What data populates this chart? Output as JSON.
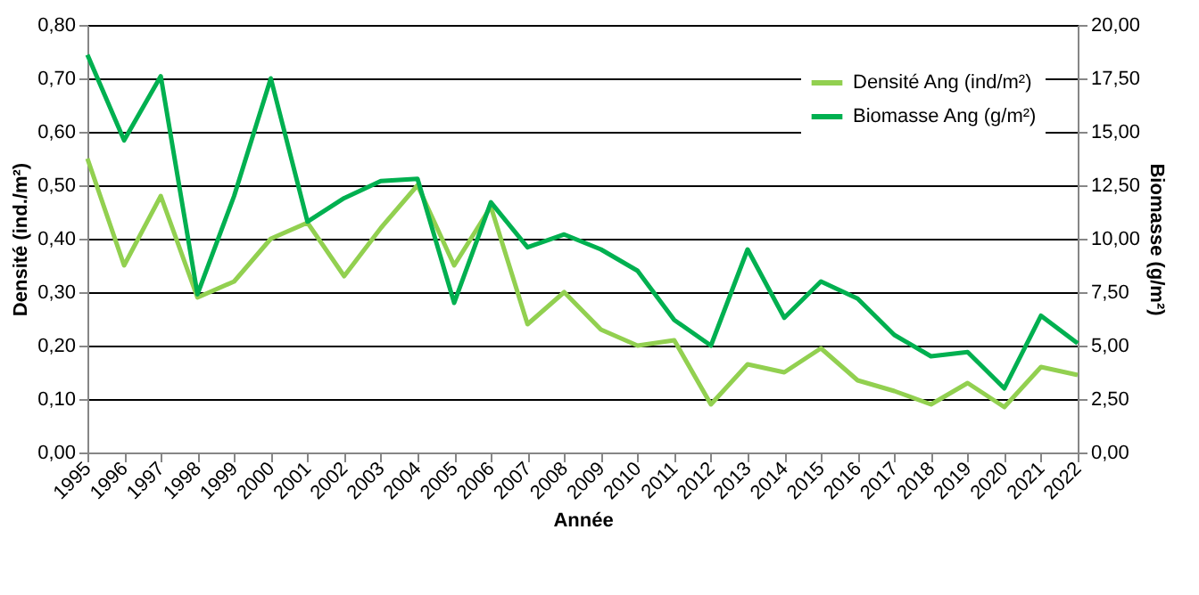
{
  "chart_data": {
    "type": "line",
    "xlabel": "Année",
    "ylabel": "Densité (ind./m²)",
    "y2label": "Biomasse (g/m²)",
    "categories": [
      "1995",
      "1996",
      "1997",
      "1998",
      "1999",
      "2000",
      "2001",
      "2002",
      "2003",
      "2004",
      "2005",
      "2006",
      "2007",
      "2008",
      "2009",
      "2010",
      "2011",
      "2012",
      "2013",
      "2014",
      "2015",
      "2016",
      "2017",
      "2018",
      "2019",
      "2020",
      "2021",
      "2022"
    ],
    "series": [
      {
        "name": "Densité Ang (ind/m²)",
        "color": "#92d050",
        "values": [
          0.55,
          0.35,
          0.48,
          0.29,
          0.32,
          0.4,
          0.43,
          0.33,
          0.42,
          0.5,
          0.35,
          0.46,
          0.24,
          0.3,
          0.23,
          0.2,
          0.21,
          0.09,
          0.165,
          0.15,
          0.195,
          0.135,
          0.115,
          0.09,
          0.13,
          0.085,
          0.16,
          0.145
        ]
      },
      {
        "name": "Biomasse Ang (g/m²)",
        "color": "#00b050",
        "axis": "y2",
        "values": [
          18.6,
          14.6,
          17.6,
          7.4,
          12.0,
          17.5,
          10.8,
          11.9,
          12.7,
          12.8,
          7.0,
          11.7,
          9.6,
          10.2,
          9.5,
          8.5,
          6.2,
          5.0,
          9.5,
          6.3,
          8.0,
          7.2,
          5.5,
          4.5,
          4.7,
          3.0,
          6.4,
          5.1
        ]
      }
    ],
    "ylim": [
      0,
      0.8
    ],
    "yticks": [
      {
        "value": 0,
        "label": "0,00"
      },
      {
        "value": 0.1,
        "label": "0,10"
      },
      {
        "value": 0.2,
        "label": "0,20"
      },
      {
        "value": 0.3,
        "label": "0,30"
      },
      {
        "value": 0.4,
        "label": "0,40"
      },
      {
        "value": 0.5,
        "label": "0,50"
      },
      {
        "value": 0.6,
        "label": "0,60"
      },
      {
        "value": 0.7,
        "label": "0,70"
      },
      {
        "value": 0.8,
        "label": "0,80"
      }
    ],
    "y2lim": [
      0,
      20
    ],
    "y2ticks": [
      {
        "value": 0,
        "label": "0,00"
      },
      {
        "value": 2.5,
        "label": "2,50"
      },
      {
        "value": 5,
        "label": "5,00"
      },
      {
        "value": 7.5,
        "label": "7,50"
      },
      {
        "value": 10,
        "label": "10,00"
      },
      {
        "value": 12.5,
        "label": "12,50"
      },
      {
        "value": 15,
        "label": "15,00"
      },
      {
        "value": 17.5,
        "label": "17,50"
      },
      {
        "value": 20,
        "label": "20,00"
      }
    ],
    "grid": "y",
    "legend": "top right",
    "marker": "none",
    "line_style": "solid"
  }
}
